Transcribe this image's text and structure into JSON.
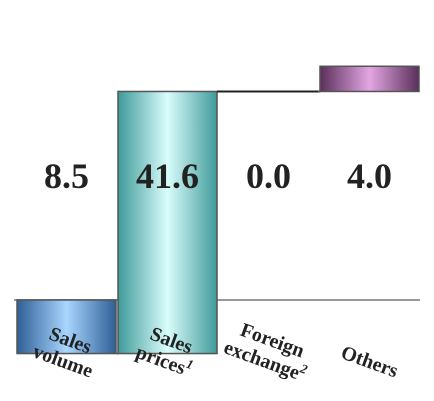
{
  "chart_data": {
    "type": "waterfall",
    "title": "",
    "xlabel": "",
    "ylabel": "",
    "grid": false,
    "legend": "none",
    "categories": [
      {
        "lines": [
          "Sales",
          "volume"
        ],
        "sup": ""
      },
      {
        "lines": [
          "Sales",
          "prices"
        ],
        "sup": "1"
      },
      {
        "lines": [
          "Foreign",
          "exchange"
        ],
        "sup": "2"
      },
      {
        "lines": [
          "Others"
        ],
        "sup": ""
      }
    ],
    "values": [
      -8.5,
      41.6,
      0.0,
      4.0
    ],
    "value_labels": [
      "8.5",
      "41.6",
      "0.0",
      "4.0"
    ],
    "colors": [
      {
        "edge": "#2e5f96",
        "center": "#a9d6ff"
      },
      {
        "edge": "#3f9a9a",
        "center": "#d9fdfb"
      },
      {
        "edge": "#555555",
        "center": "#555555"
      },
      {
        "edge": "#5a2f5a",
        "center": "#e3a6e3"
      }
    ]
  }
}
